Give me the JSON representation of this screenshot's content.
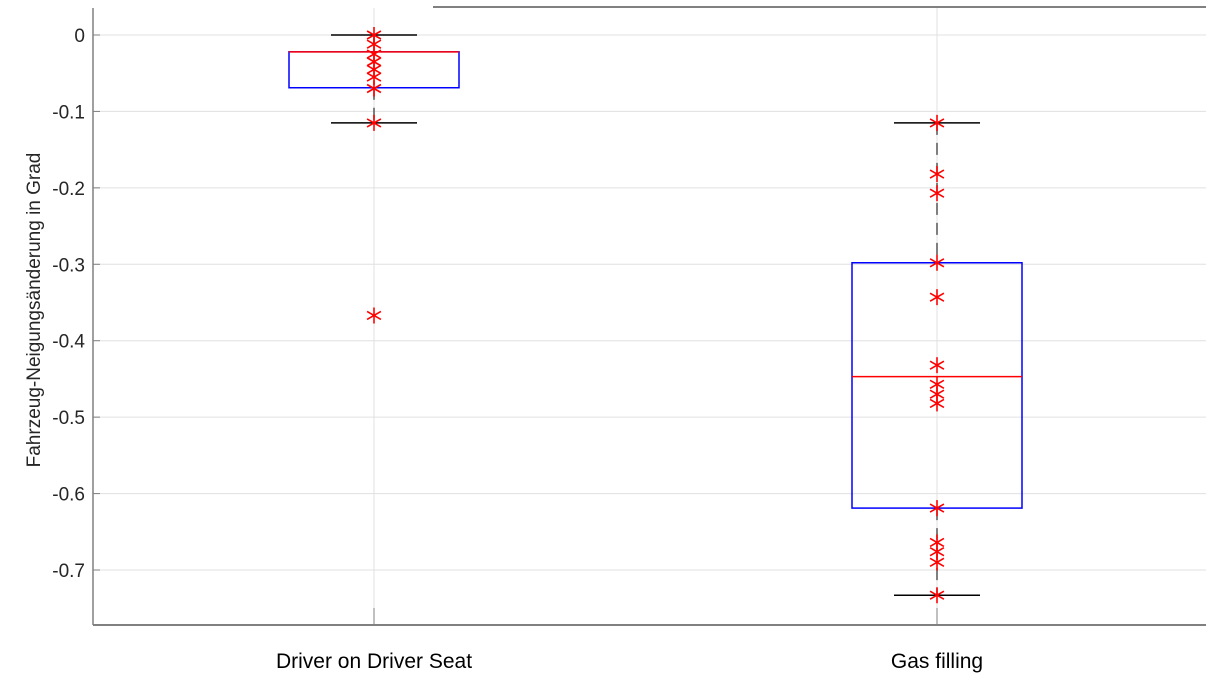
{
  "chart_data": {
    "type": "box",
    "title": "",
    "xlabel": "",
    "ylabel": "Fahrzeug-Neigungsänderung in Grad",
    "ylim": [
      -0.775,
      0.035
    ],
    "yticks": [
      0,
      -0.1,
      -0.2,
      -0.3,
      -0.4,
      -0.5,
      -0.6,
      -0.7
    ],
    "ytick_labels": [
      "0",
      "-0.1",
      "-0.2",
      "-0.3",
      "-0.4",
      "-0.5",
      "-0.6",
      "-0.7"
    ],
    "grid": true,
    "categories": [
      "Driver on Driver Seat",
      "Gas filling"
    ],
    "boxes": [
      {
        "category": "Driver on Driver Seat",
        "whisker_high": 0.0,
        "q3": -0.022,
        "median": -0.022,
        "q1": -0.069,
        "whisker_low": -0.115,
        "points": [
          0.0,
          -0.012,
          -0.025,
          -0.035,
          -0.045,
          -0.055,
          -0.07,
          -0.115,
          -0.367
        ]
      },
      {
        "category": "Gas filling",
        "whisker_high": -0.115,
        "q3": -0.298,
        "median": -0.447,
        "q1": -0.619,
        "whisker_low": -0.733,
        "points": [
          -0.115,
          -0.182,
          -0.207,
          -0.298,
          -0.343,
          -0.432,
          -0.457,
          -0.47,
          -0.482,
          -0.619,
          -0.664,
          -0.676,
          -0.69,
          -0.733
        ]
      }
    ],
    "colors": {
      "box": "#0000ff",
      "median": "#ff0000",
      "whisker": "#000000",
      "whisker_dashed": "#555555",
      "points": "#ff0000",
      "grid": "#e0e0e0",
      "axis": "#808080"
    }
  }
}
